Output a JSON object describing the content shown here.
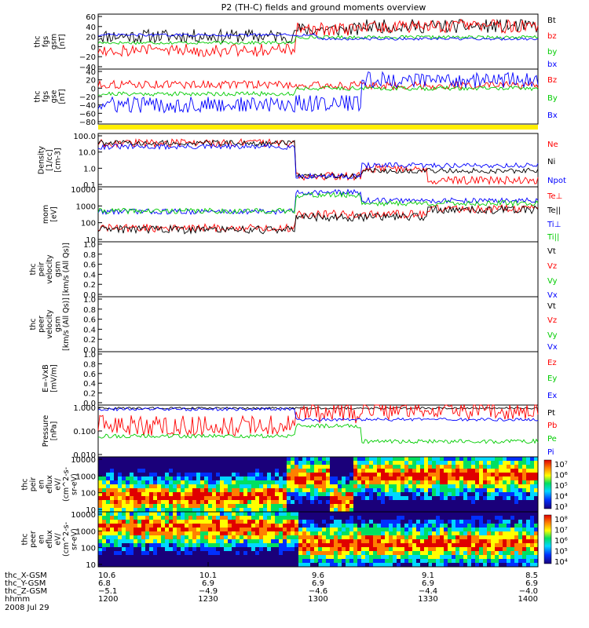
{
  "title": "P2 (TH-C) fields and ground moments overview",
  "date": "2008 Jul 29",
  "chart_data": [
    {
      "type": "line",
      "ylabel": [
        "thc",
        "fgs",
        "gsm",
        "[nT]"
      ],
      "yticks": [
        "60",
        "40",
        "20",
        "0",
        "−20",
        "−40"
      ],
      "ylim": [
        -40,
        60
      ],
      "series": [
        {
          "name": "Bt",
          "color": "#000000"
        },
        {
          "name": "bz",
          "color": "#ff0000"
        },
        {
          "name": "by",
          "color": "#00cc00"
        },
        {
          "name": "bx",
          "color": "#0000ff"
        }
      ]
    },
    {
      "type": "line",
      "ylabel": [
        "thc",
        "fgs",
        "gse",
        "[nT]"
      ],
      "yticks": [
        "40",
        "20",
        "0",
        "−20",
        "−40",
        "−60",
        "−80"
      ],
      "ylim": [
        -80,
        40
      ],
      "series": [
        {
          "name": "Bz",
          "color": "#ff0000"
        },
        {
          "name": "By",
          "color": "#00cc00"
        },
        {
          "name": "Bx",
          "color": "#0000ff"
        }
      ]
    },
    {
      "type": "line",
      "ylabel": [
        "Density",
        "[1/cc]",
        "[cm-3]"
      ],
      "yticks": [
        "100.0",
        "10.0",
        "1.0",
        "0.1"
      ],
      "log": true,
      "series": [
        {
          "name": "Ne",
          "color": "#ff0000"
        },
        {
          "name": "Ni",
          "color": "#000000"
        },
        {
          "name": "Npot",
          "color": "#0000ff"
        }
      ]
    },
    {
      "type": "line",
      "ylabel": [
        "mom",
        "[eV]"
      ],
      "yticks": [
        "10000",
        "1000",
        "100",
        "10"
      ],
      "log": true,
      "series": [
        {
          "name": "Te⊥",
          "color": "#ff0000"
        },
        {
          "name": "Te||",
          "color": "#000000"
        },
        {
          "name": "Ti⊥",
          "color": "#0000ff"
        },
        {
          "name": "Ti||",
          "color": "#00cc00"
        }
      ]
    },
    {
      "type": "line",
      "ylabel": [
        "thc",
        "peir",
        "velocity",
        "gsm",
        "[km/s (All Qs)]"
      ],
      "yticks": [
        "1.0",
        "0.8",
        "0.6",
        "0.4",
        "0.2",
        "0.0"
      ],
      "series": [
        {
          "name": "Vt",
          "color": "#000000"
        },
        {
          "name": "Vz",
          "color": "#ff0000"
        },
        {
          "name": "Vy",
          "color": "#00cc00"
        },
        {
          "name": "Vx",
          "color": "#0000ff"
        }
      ]
    },
    {
      "type": "line",
      "ylabel": [
        "thc",
        "peer",
        "velocity",
        "gsm",
        "[km/s (All Qs)]"
      ],
      "yticks": [
        "1.0",
        "0.8",
        "0.6",
        "0.4",
        "0.2",
        "0.0"
      ],
      "series": [
        {
          "name": "Vt",
          "color": "#000000"
        },
        {
          "name": "Vz",
          "color": "#ff0000"
        },
        {
          "name": "Vy",
          "color": "#00cc00"
        },
        {
          "name": "Vx",
          "color": "#0000ff"
        }
      ]
    },
    {
      "type": "line",
      "ylabel": [
        "E=-VxB",
        "[mV/m]"
      ],
      "yticks": [
        "1.0",
        "0.8",
        "0.6",
        "0.4",
        "0.2",
        "0.0"
      ],
      "series": [
        {
          "name": "Ez",
          "color": "#ff0000"
        },
        {
          "name": "Ey",
          "color": "#00cc00"
        },
        {
          "name": "Ex",
          "color": "#0000ff"
        }
      ]
    },
    {
      "type": "line",
      "ylabel": [
        "Pressure",
        "[nPa]"
      ],
      "yticks": [
        "1.000",
        "0.100",
        "0.010"
      ],
      "log": true,
      "series": [
        {
          "name": "Pt",
          "color": "#000000"
        },
        {
          "name": "Pb",
          "color": "#ff0000"
        },
        {
          "name": "Pe",
          "color": "#00cc00"
        },
        {
          "name": "Pi",
          "color": "#0000ff"
        }
      ]
    },
    {
      "type": "heatmap",
      "ylabel": [
        "thc",
        "peir",
        "en",
        "eflux",
        "eV/",
        "(cm^2-s-",
        "sr-eV)"
      ],
      "yticks": [
        "10000",
        "1000",
        "100",
        "10"
      ],
      "colorbar": [
        "10⁷",
        "10⁶",
        "10⁵",
        "10⁴",
        "10³"
      ]
    },
    {
      "type": "heatmap",
      "ylabel": [
        "thc",
        "peer",
        "en",
        "eflux",
        "eV/",
        "(cm^2-s-",
        "sr-eV)"
      ],
      "yticks": [
        "10000",
        "1000",
        "100",
        "10"
      ],
      "colorbar": [
        "10⁸",
        "10⁷",
        "10⁶",
        "10⁵",
        "10⁴"
      ]
    }
  ],
  "xaxis": {
    "rows": [
      {
        "label": "thc_X-GSM",
        "values": [
          "10.6",
          "10.1",
          "9.6",
          "9.1",
          "8.5"
        ]
      },
      {
        "label": "thc_Y-GSM",
        "values": [
          "6.8",
          "6.9",
          "6.9",
          "6.9",
          "6.9"
        ]
      },
      {
        "label": "thc_Z-GSM",
        "values": [
          "−5.1",
          "−4.9",
          "−4.6",
          "−4.4",
          "−4.0"
        ]
      },
      {
        "label": "hhmm",
        "values": [
          "1200",
          "1230",
          "1300",
          "1330",
          "1400"
        ]
      }
    ]
  }
}
